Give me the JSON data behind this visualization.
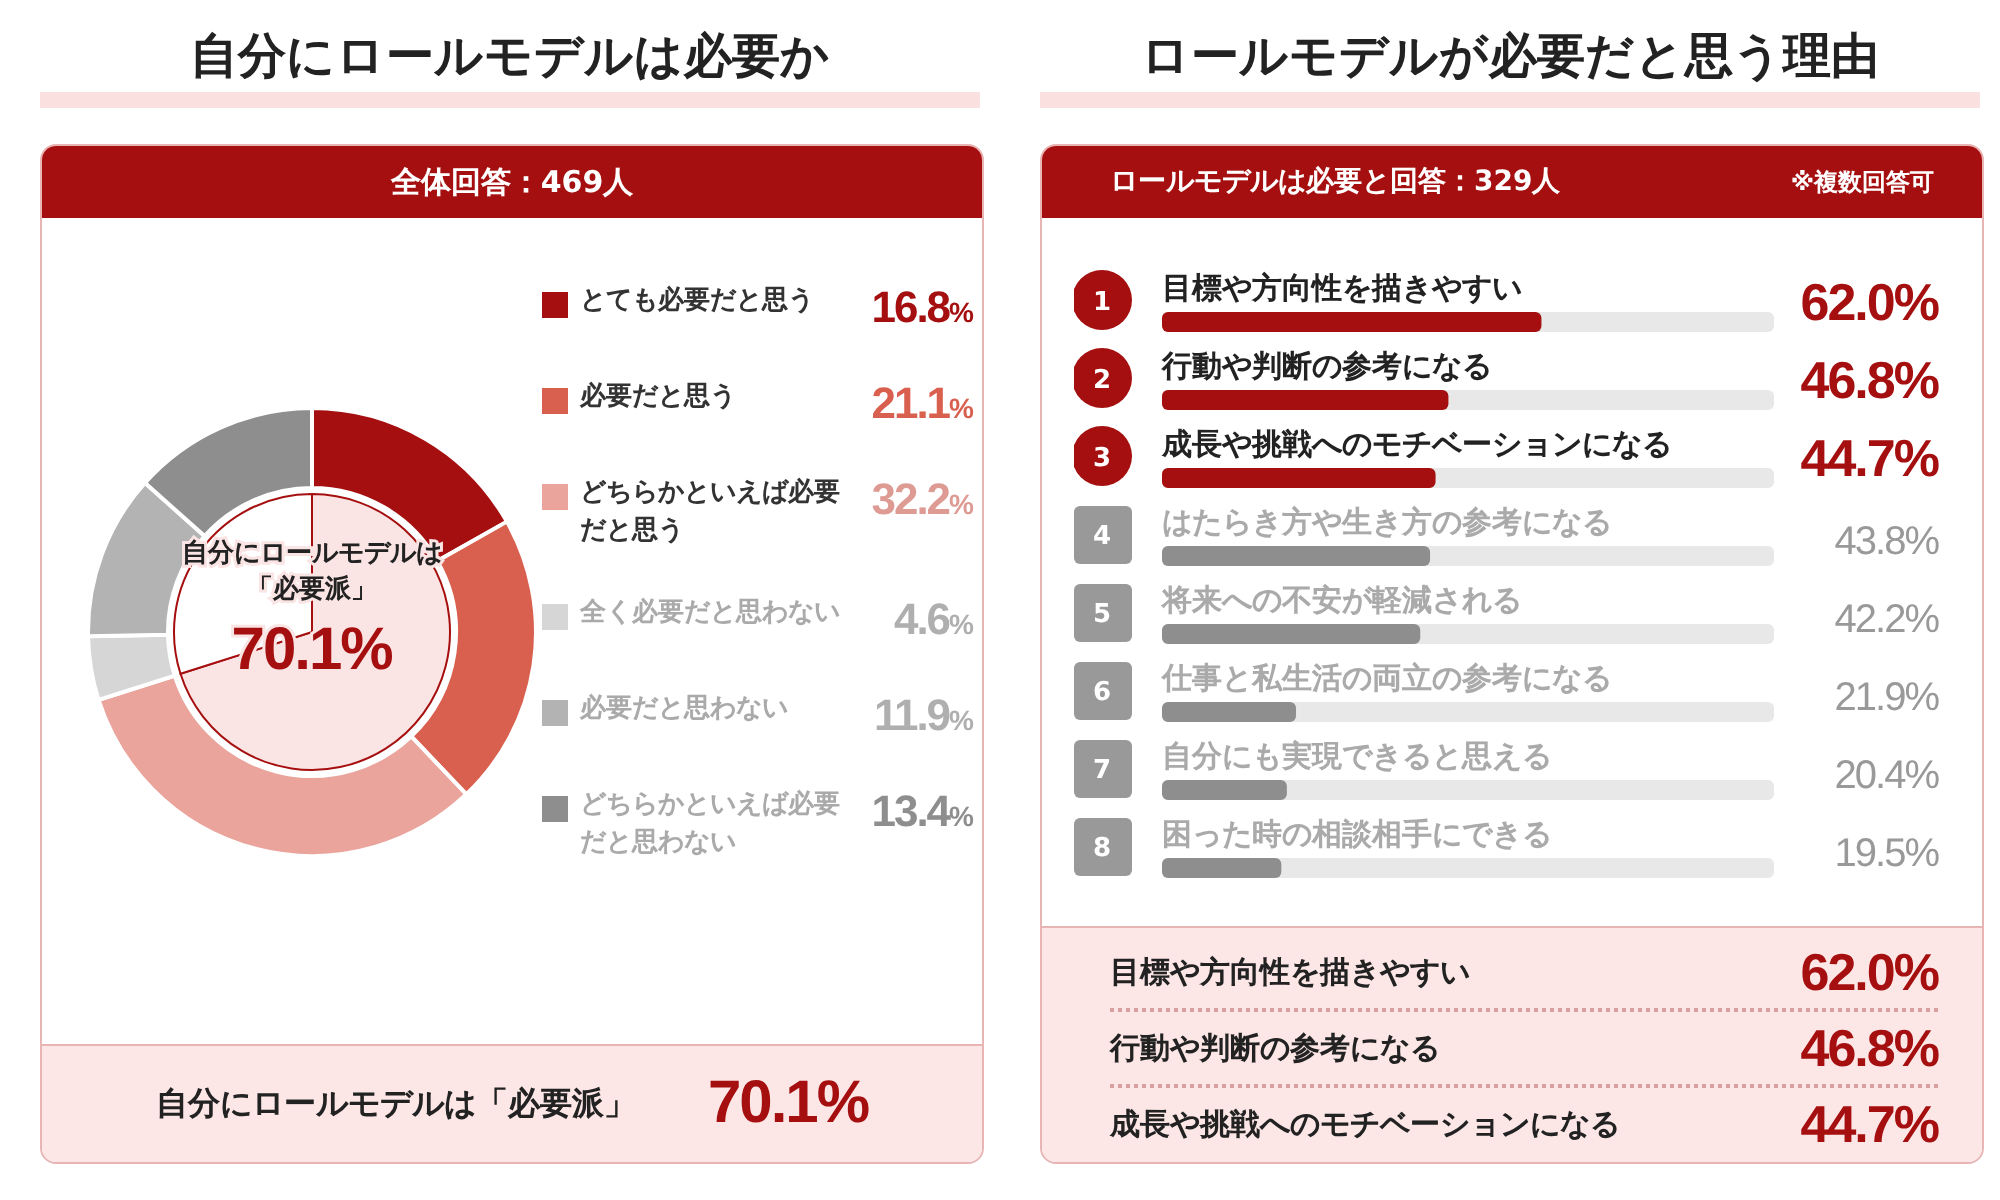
{
  "chart_data": [
    {
      "type": "donut",
      "title": "自分にロールモデルは必要か",
      "subtitle": "全体回答：469人",
      "categories": [
        "とても必要だと思う",
        "必要だと思う",
        "どちらかといえば必要だと思う",
        "全く必要だと思わない",
        "必要だと思わない",
        "どちらかといえば必要だと思わない"
      ],
      "values": [
        16.8,
        21.1,
        32.2,
        4.6,
        11.9,
        13.4
      ],
      "colors": [
        "#a50f0f",
        "#d9604f",
        "#eaa49c",
        "#d6d6d6",
        "#b3b3b3",
        "#8e8e8e"
      ],
      "value_labels": [
        "16.8%",
        "21.1%",
        "32.2%",
        "4.6%",
        "11.9%",
        "13.4%"
      ],
      "legend": "right",
      "annotations": [
        "自分にロールモデルは「必要派」",
        "70.1%"
      ]
    },
    {
      "type": "pie",
      "categories": [
        "自分にロールモデルは「必要派」",
        null
      ],
      "values": [
        70.1,
        29.9
      ],
      "colors": [
        "#fbe4e4",
        "#ffffff"
      ],
      "value_labels": [
        "70.1%",
        null
      ]
    },
    {
      "type": "bar",
      "orientation": "horizontal",
      "title": "ロールモデルが必要だと思う理由",
      "subtitle": "ロールモデルは必要と回答：329人",
      "categories": [
        "目標や方向性を描きやすい",
        "行動や判断の参考になる",
        "成長や挑戦へのモチベーションになる",
        "はたらき方や生き方の参考になる",
        "将来への不安が軽減される",
        "仕事と私生活の両立の参考になる",
        "自分にも実現できると思える",
        "困った時の相談相手にできる"
      ],
      "values": [
        62.0,
        46.8,
        44.7,
        43.8,
        42.2,
        21.9,
        20.4,
        19.5
      ],
      "colors": [
        "#a50f0f",
        "#a50f0f",
        "#a50f0f",
        "#8e8e8e",
        "#8e8e8e",
        "#8e8e8e",
        "#8e8e8e",
        "#8e8e8e"
      ],
      "value_labels": [
        "62.0%",
        "46.8%",
        "44.7%",
        "43.8%",
        "42.2%",
        "21.9%",
        "20.4%",
        "19.5%"
      ],
      "xlim": [
        0,
        100
      ],
      "tick_labels": false,
      "annotations": [
        "※複数回答可",
        "1",
        "2",
        "3",
        "4",
        "5",
        "6",
        "7",
        "8"
      ]
    }
  ]
}
